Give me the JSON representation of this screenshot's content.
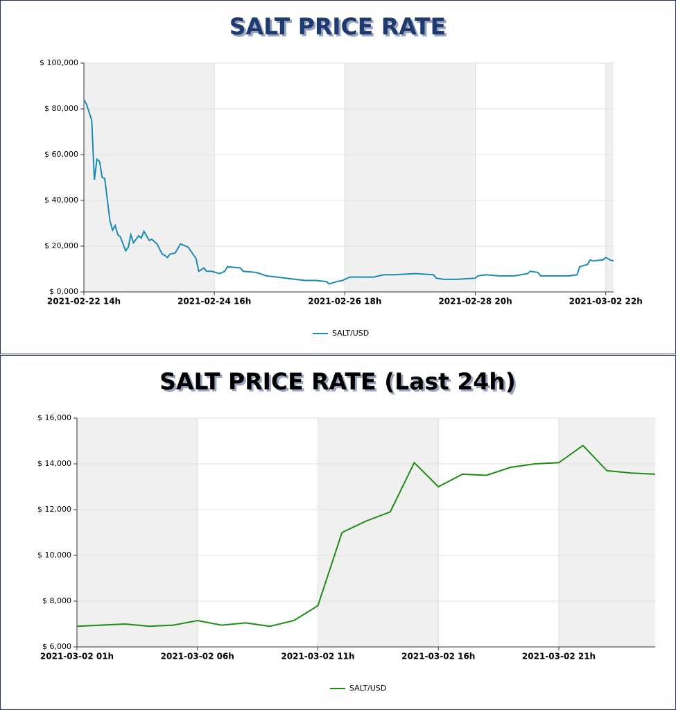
{
  "chart_data": [
    {
      "type": "line",
      "title": "SALT PRICE RATE",
      "x": [
        "2021-02-22 14h",
        "2021-02-22 15h",
        "2021-02-22 17h",
        "2021-02-22 18h",
        "2021-02-22 19h",
        "2021-02-22 20h",
        "2021-02-22 21h",
        "2021-02-22 22h",
        "2021-02-22 23h",
        "2021-02-23 00h",
        "2021-02-23 01h",
        "2021-02-23 02h",
        "2021-02-23 03h",
        "2021-02-23 04h",
        "2021-02-23 06h",
        "2021-02-23 07h",
        "2021-02-23 08h",
        "2021-02-23 09h",
        "2021-02-23 11h",
        "2021-02-23 12h",
        "2021-02-23 13h",
        "2021-02-23 15h",
        "2021-02-23 16h",
        "2021-02-23 18h",
        "2021-02-23 20h",
        "2021-02-23 21h",
        "2021-02-23 22h",
        "2021-02-23 23h",
        "2021-02-24 01h",
        "2021-02-24 03h",
        "2021-02-24 05h",
        "2021-02-24 06h",
        "2021-02-24 09h",
        "2021-02-24 10h",
        "2021-02-24 12h",
        "2021-02-24 13h",
        "2021-02-24 15h",
        "2021-02-24 18h",
        "2021-02-24 20h",
        "2021-02-24 21h",
        "2021-02-25 02h",
        "2021-02-25 03h",
        "2021-02-25 08h",
        "2021-02-25 12h",
        "2021-02-25 16h",
        "2021-02-25 23h",
        "2021-02-26 03h",
        "2021-02-26 07h",
        "2021-02-26 11h",
        "2021-02-26 12h",
        "2021-02-26 15h",
        "2021-02-26 17h",
        "2021-02-26 20h",
        "2021-02-27 00h",
        "2021-02-27 05h",
        "2021-02-27 09h",
        "2021-02-27 13h",
        "2021-02-27 21h",
        "2021-02-28 04h",
        "2021-02-28 05h",
        "2021-02-28 08h",
        "2021-02-28 13h",
        "2021-02-28 20h",
        "2021-02-28 21h",
        "2021-03-01 00h",
        "2021-03-01 05h",
        "2021-03-01 11h",
        "2021-03-01 16h",
        "2021-03-01 17h",
        "2021-03-01 20h",
        "2021-03-01 21h",
        "2021-03-02 02h",
        "2021-03-02 08h",
        "2021-03-02 11h",
        "2021-03-02 12h",
        "2021-03-02 15h",
        "2021-03-02 16h",
        "2021-03-02 17h",
        "2021-03-02 21h",
        "2021-03-02 22h",
        "2021-03-03 00h",
        "2021-03-03 01h"
      ],
      "series": [
        {
          "name": "SALT/USD",
          "color": "#1a8ab5",
          "values": [
            84000,
            82000,
            75000,
            49000,
            58000,
            57000,
            50000,
            49500,
            40000,
            31000,
            27000,
            29000,
            25000,
            24000,
            18000,
            19500,
            25000,
            21500,
            24500,
            23500,
            26500,
            22500,
            23000,
            21000,
            16500,
            16000,
            15000,
            16500,
            17000,
            21000,
            20000,
            19500,
            14500,
            9000,
            10500,
            9000,
            9000,
            8000,
            9000,
            11000,
            10500,
            9000,
            8500,
            7000,
            6500,
            5500,
            5000,
            5000,
            4500,
            3500,
            4500,
            5000,
            6500,
            6500,
            6500,
            7500,
            7500,
            8000,
            7500,
            6000,
            5500,
            5500,
            6000,
            7000,
            7500,
            7000,
            7000,
            8000,
            9000,
            8500,
            7000,
            7000,
            7000,
            7500,
            11000,
            12000,
            14000,
            13500,
            14000,
            15000,
            13800,
            13600
          ]
        }
      ],
      "xlim": [
        "2021-02-22 14h",
        "2021-03-03 01h"
      ],
      "xticks": [
        "2021-02-22 14h",
        "2021-02-24 16h",
        "2021-02-26 18h",
        "2021-02-28 20h",
        "2021-03-02 22h"
      ],
      "ylim": [
        0,
        100000
      ],
      "yticks": [
        {
          "value": 0,
          "label": "$ 0,000"
        },
        {
          "value": 20000,
          "label": "$ 20,000"
        },
        {
          "value": 40000,
          "label": "$ 40,000"
        },
        {
          "value": 60000,
          "label": "$ 60,000"
        },
        {
          "value": 80000,
          "label": "$ 80,000"
        },
        {
          "value": 100000,
          "label": "$ 100,000"
        }
      ],
      "grid": true,
      "legend": "bottom"
    },
    {
      "type": "line",
      "title": "SALT PRICE RATE (Last 24h)",
      "x": [
        "2021-03-02 01h",
        "2021-03-02 02h",
        "2021-03-02 03h",
        "2021-03-02 04h",
        "2021-03-02 05h",
        "2021-03-02 06h",
        "2021-03-02 07h",
        "2021-03-02 08h",
        "2021-03-02 09h",
        "2021-03-02 10h",
        "2021-03-02 11h",
        "2021-03-02 12h",
        "2021-03-02 13h",
        "2021-03-02 14h",
        "2021-03-02 15h",
        "2021-03-02 16h",
        "2021-03-02 17h",
        "2021-03-02 18h",
        "2021-03-02 19h",
        "2021-03-02 20h",
        "2021-03-02 21h",
        "2021-03-02 22h",
        "2021-03-02 23h",
        "2021-03-03 00h",
        "2021-03-03 01h"
      ],
      "series": [
        {
          "name": "SALT/USD",
          "color": "#1e8c12",
          "values": [
            6900,
            6950,
            7000,
            6900,
            6950,
            7150,
            6950,
            7050,
            6900,
            7150,
            7800,
            11000,
            11500,
            11900,
            14050,
            13000,
            13550,
            13500,
            13850,
            14000,
            14050,
            14800,
            13700,
            13600,
            13550
          ]
        }
      ],
      "xlim": [
        "2021-03-02 01h",
        "2021-03-03 01h"
      ],
      "xticks": [
        "2021-03-02 01h",
        "2021-03-02 06h",
        "2021-03-02 11h",
        "2021-03-02 16h",
        "2021-03-02 21h"
      ],
      "ylim": [
        6000,
        16000
      ],
      "yticks": [
        {
          "value": 6000,
          "label": "$ 6,000"
        },
        {
          "value": 8000,
          "label": "$ 8,000"
        },
        {
          "value": 10000,
          "label": "$ 10,000"
        },
        {
          "value": 12000,
          "label": "$ 12,000"
        },
        {
          "value": 14000,
          "label": "$ 14,000"
        },
        {
          "value": 16000,
          "label": "$ 16,000"
        }
      ],
      "grid": true,
      "legend": "bottom"
    }
  ]
}
